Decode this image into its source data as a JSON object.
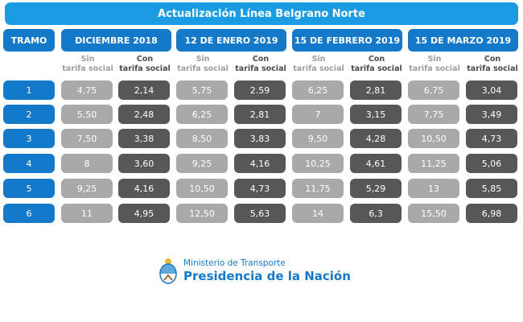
{
  "title": "Actualización Línea Belgrano Norte",
  "tramo_header": "TRAMO",
  "periods": [
    {
      "label": "DICIEMBRE 2018"
    },
    {
      "label": "12 DE ENERO 2019"
    },
    {
      "label": "15 DE FEBRERO 2019"
    },
    {
      "label": "15 DE MARZO 2019"
    }
  ],
  "subheaders": {
    "sin_line1": "Sin",
    "sin_line2": "tarifa social",
    "con_line1": "Con",
    "con_line2": "tarifa social"
  },
  "rows": [
    {
      "tramo": "1",
      "values": [
        "4,75",
        "2,14",
        "5,75",
        "2.59",
        "6,25",
        "2,81",
        "6,75",
        "3,04"
      ]
    },
    {
      "tramo": "2",
      "values": [
        "5,50",
        "2,48",
        "6,25",
        "2,81",
        "7",
        "3,15",
        "7,75",
        "3,49"
      ]
    },
    {
      "tramo": "3",
      "values": [
        "7,50",
        "3,38",
        "8,50",
        "3,83",
        "9,50",
        "4,28",
        "10,50",
        "4,73"
      ]
    },
    {
      "tramo": "4",
      "values": [
        "8",
        "3,60",
        "9,25",
        "4,16",
        "10,25",
        "4,61",
        "11,25",
        "5,06"
      ]
    },
    {
      "tramo": "5",
      "values": [
        "9,25",
        "4,16",
        "10,50",
        "4,73",
        "11,75",
        "5,29",
        "13",
        "5,85"
      ]
    },
    {
      "tramo": "6",
      "values": [
        "11",
        "4,95",
        "12,50",
        "5,63",
        "14",
        "6,3",
        "15,50",
        "6,98"
      ]
    }
  ],
  "footer": {
    "ministry": "Ministerio de Transporte",
    "presidency": "Presidencia de la Nación"
  }
}
